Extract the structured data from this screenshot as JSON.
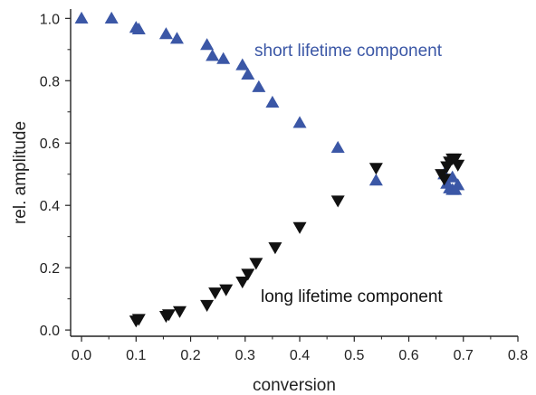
{
  "chart_data": {
    "type": "scatter",
    "xlabel": "conversion",
    "ylabel": "rel. amplitude",
    "xlim": [
      -0.02,
      0.8
    ],
    "ylim": [
      -0.02,
      1.03
    ],
    "xticks": [
      0.0,
      0.1,
      0.2,
      0.3,
      0.4,
      0.5,
      0.6,
      0.7,
      0.8
    ],
    "xtick_labels": [
      "0.0",
      "0.1",
      "0.2",
      "0.3",
      "0.4",
      "0.5",
      "0.6",
      "0.7",
      "0.8"
    ],
    "yticks": [
      0.0,
      0.2,
      0.4,
      0.6,
      0.8,
      1.0
    ],
    "ytick_labels": [
      "0.0",
      "0.2",
      "0.4",
      "0.6",
      "0.8",
      "1.0"
    ],
    "grid": false,
    "annotations": [
      {
        "text": "short lifetime component",
        "color": "#3b57a6",
        "series": "short"
      },
      {
        "text": "long lifetime component",
        "color": "#111111",
        "series": "long"
      }
    ],
    "series": [
      {
        "marker": "triangle-up",
        "color": "#3b57a6",
        "x": [
          0.0,
          0.055,
          0.1,
          0.105,
          0.155,
          0.175,
          0.23,
          0.24,
          0.26,
          0.295,
          0.305,
          0.325,
          0.35,
          0.4,
          0.47,
          0.54,
          0.67,
          0.675,
          0.68,
          0.685,
          0.69,
          0.665,
          0.68
        ],
        "y": [
          1.0,
          1.0,
          0.97,
          0.965,
          0.95,
          0.935,
          0.915,
          0.88,
          0.87,
          0.85,
          0.82,
          0.78,
          0.73,
          0.665,
          0.585,
          0.48,
          0.47,
          0.455,
          0.45,
          0.45,
          0.465,
          0.5,
          0.49
        ]
      },
      {
        "marker": "triangle-down",
        "color": "#111111",
        "x": [
          0.1,
          0.105,
          0.155,
          0.16,
          0.18,
          0.23,
          0.245,
          0.265,
          0.295,
          0.305,
          0.32,
          0.355,
          0.4,
          0.47,
          0.54,
          0.66,
          0.665,
          0.675,
          0.68,
          0.685,
          0.69,
          0.67
        ],
        "y": [
          0.03,
          0.035,
          0.045,
          0.05,
          0.06,
          0.08,
          0.12,
          0.13,
          0.155,
          0.18,
          0.215,
          0.265,
          0.33,
          0.415,
          0.52,
          0.5,
          0.485,
          0.54,
          0.55,
          0.55,
          0.53,
          0.525
        ]
      }
    ]
  }
}
